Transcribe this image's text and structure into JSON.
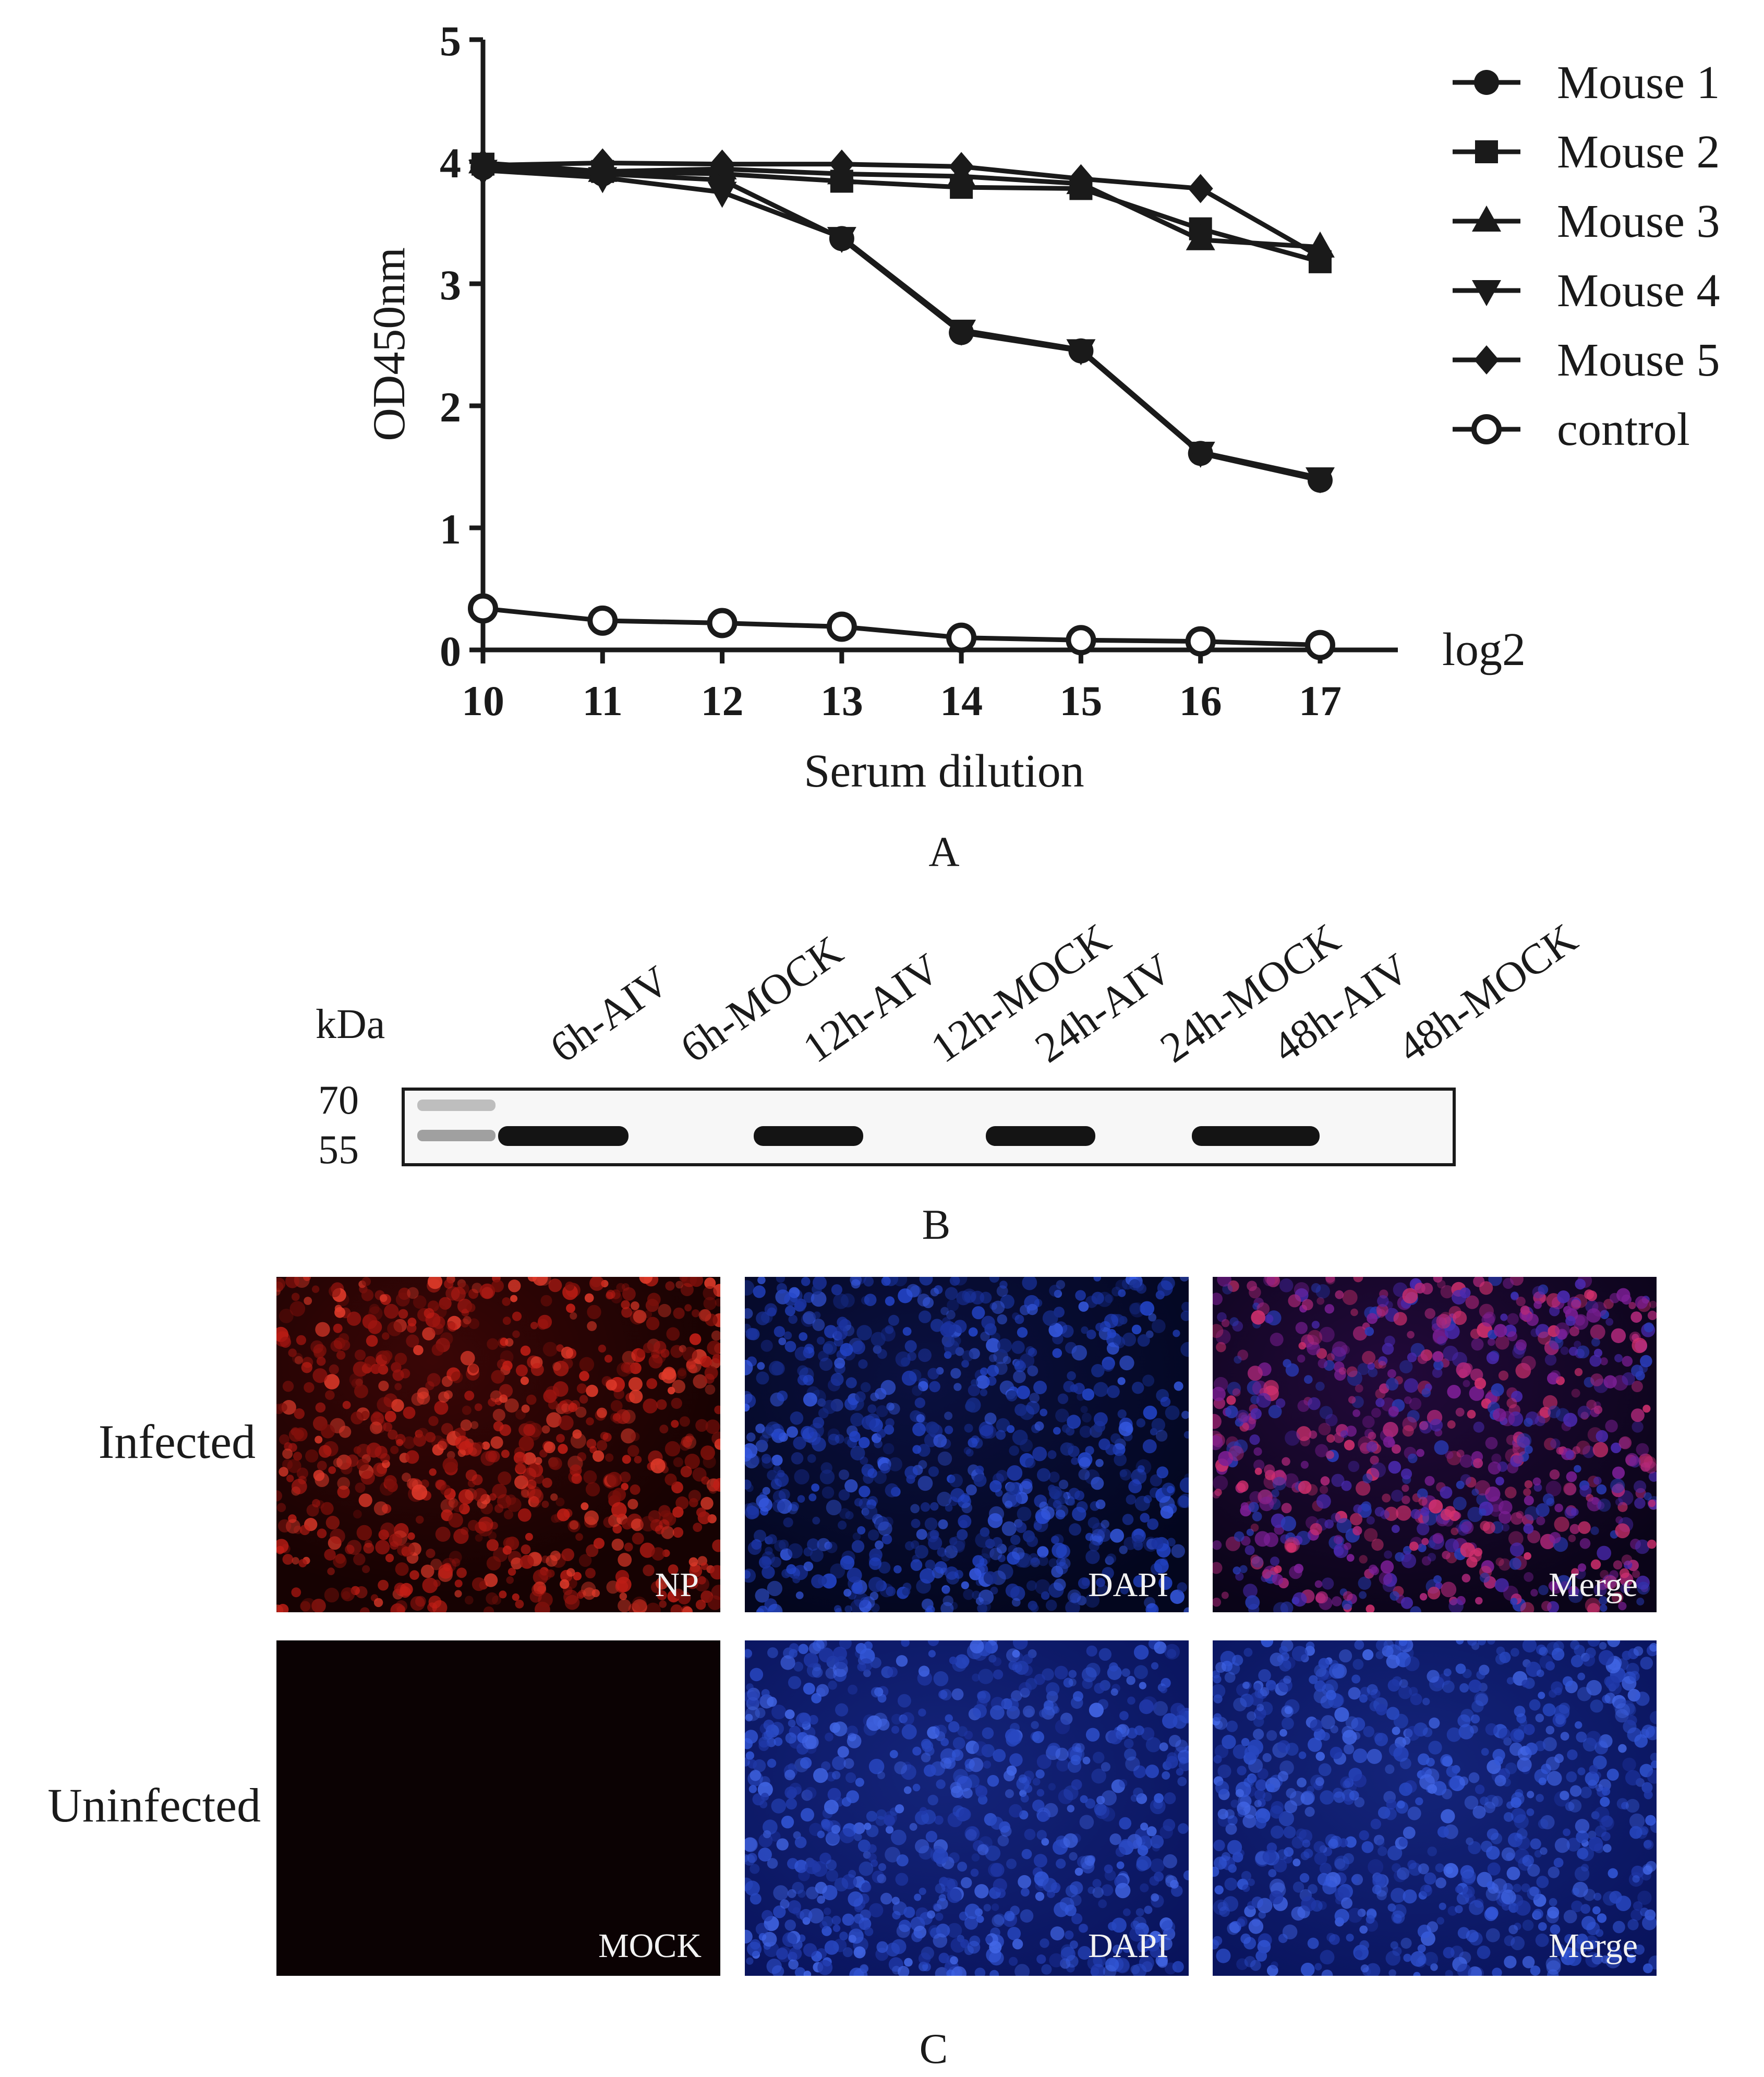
{
  "panel_a": {
    "label": "A",
    "unit_label": "log2",
    "chart_data": {
      "type": "line",
      "title": "",
      "xlabel": "Serum dilution",
      "ylabel": "OD450nm",
      "x": [
        10,
        11,
        12,
        13,
        14,
        15,
        16,
        17
      ],
      "xlim": [
        10,
        17.65
      ],
      "ylim": [
        0,
        5
      ],
      "yticks": [
        0,
        1,
        2,
        3,
        4,
        5
      ],
      "grid": false,
      "legend_position": "right",
      "series": [
        {
          "name": "Mouse 1",
          "marker": "circle",
          "values": [
            3.95,
            3.9,
            3.85,
            3.37,
            2.6,
            2.45,
            1.61,
            1.39
          ]
        },
        {
          "name": "Mouse 2",
          "marker": "square",
          "values": [
            3.98,
            3.92,
            3.9,
            3.84,
            3.79,
            3.78,
            3.45,
            3.18
          ]
        },
        {
          "name": "Mouse 3",
          "marker": "triangle-up",
          "values": [
            3.99,
            3.92,
            3.94,
            3.9,
            3.88,
            3.82,
            3.36,
            3.3
          ]
        },
        {
          "name": "Mouse 4",
          "marker": "triangle-down",
          "values": [
            3.93,
            3.87,
            3.75,
            3.38,
            2.62,
            2.46,
            1.62,
            1.41
          ]
        },
        {
          "name": "Mouse 5",
          "marker": "diamond",
          "values": [
            3.97,
            3.99,
            3.98,
            3.98,
            3.96,
            3.86,
            3.78,
            3.22
          ]
        },
        {
          "name": "control",
          "marker": "open-circle",
          "values": [
            0.34,
            0.24,
            0.22,
            0.19,
            0.1,
            0.08,
            0.07,
            0.04
          ]
        }
      ]
    }
  },
  "panel_b": {
    "label": "B",
    "unit": "kDa",
    "markers": [
      "70",
      "55"
    ],
    "lanes": [
      "6h-AIV",
      "6h-MOCK",
      "12h-AIV",
      "12h-MOCK",
      "24h-AIV",
      "24h-MOCK",
      "48h-AIV",
      "48h-MOCK"
    ],
    "band_present": [
      1,
      0,
      1,
      0,
      1,
      0,
      1,
      0
    ],
    "colors": {
      "band": "#141414",
      "membrane": "#f7f7f7",
      "ladder": "#7a7a7a"
    }
  },
  "panel_c": {
    "label": "C",
    "rows": [
      {
        "label": "Infected",
        "images": [
          {
            "caption": "NP",
            "channel": "red"
          },
          {
            "caption": "DAPI",
            "channel": "blue"
          },
          {
            "caption": "Merge",
            "channel": "merge"
          }
        ]
      },
      {
        "label": "Uninfected",
        "images": [
          {
            "caption": "MOCK",
            "channel": "black"
          },
          {
            "caption": "DAPI",
            "channel": "blue"
          },
          {
            "caption": "Merge",
            "channel": "blue"
          }
        ]
      }
    ],
    "colors": {
      "red": "#d2281e",
      "blue": "#2a52d6",
      "merge": "#b4286e"
    }
  }
}
